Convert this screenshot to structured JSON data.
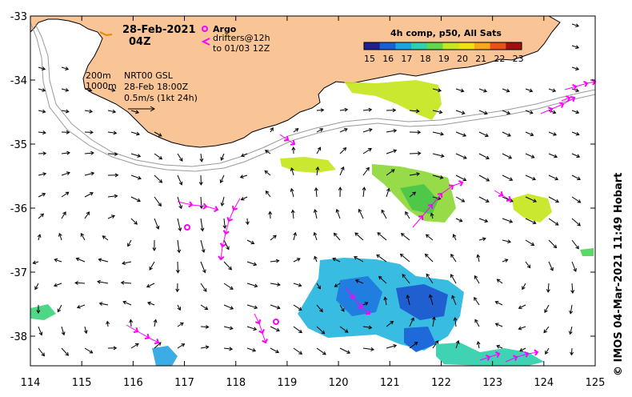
{
  "map": {
    "date_label": "28-Feb-2021",
    "time_label": "04Z",
    "argo_label": "Argo",
    "drifter_label_1": "drifters@12h",
    "drifter_label_2": "to 01/03 12Z",
    "isobath_200": "200m",
    "isobath_1000": "1000m",
    "product_label": "NRT00 GSL",
    "product_time": "28-Feb 18:00Z",
    "scale_label": "0.5m/s (1kt 24h)",
    "colorbar_title": "4h comp, p50, All Sats",
    "colorbar_ticks": [
      "15",
      "16",
      "17",
      "18",
      "19",
      "20",
      "21",
      "22",
      "23"
    ],
    "credit": "©  IMOS 04-Mar-2021 11:49 Hobart",
    "lon_ticks": [
      "114",
      "115",
      "116",
      "117",
      "118",
      "119",
      "120",
      "121",
      "122",
      "123",
      "124",
      "125"
    ],
    "lat_ticks": [
      "-33",
      "-34",
      "-35",
      "-36",
      "-37",
      "-38"
    ],
    "lon_range": [
      114,
      125
    ],
    "lat_range": [
      -38.5,
      -33
    ],
    "colors": {
      "land": "#f9c596",
      "argo": "#ff00ff",
      "drifter": "#ff00ff",
      "isobath": "#9a9a9a"
    },
    "colorbar_colors": [
      "#202090",
      "#1a5fd6",
      "#19a6e0",
      "#2fd0b0",
      "#5fd84a",
      "#c4e820",
      "#f0e010",
      "#f8a818",
      "#e85018",
      "#a01010"
    ]
  }
}
